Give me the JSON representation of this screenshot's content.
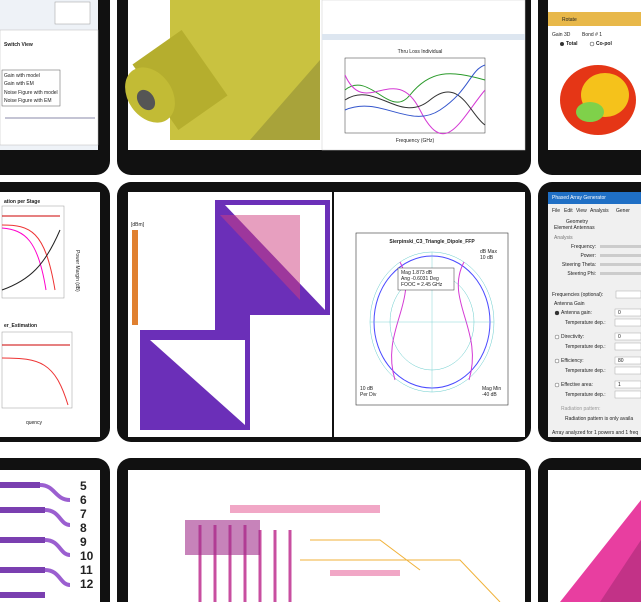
{
  "top_left": {
    "title": "Switch View",
    "items": [
      "Gain with model",
      "Gain with EM",
      "Noise Figure with model",
      "Noise Figure with EM"
    ]
  },
  "top_middle": {
    "plot_title": "Thru Loss Individual",
    "x_label": "Frequency (GHz)"
  },
  "top_right": {
    "button": "Rotate",
    "dropdowns": [
      "Gain 3D",
      "Bond # 1"
    ],
    "radios": [
      "Total",
      "Co-pol"
    ]
  },
  "middle_left": {
    "plot1_title": "ation per Stage",
    "plot1_axis": "Power Margin (dB)",
    "plot2_title": "er_Estimation",
    "x_label": "quency"
  },
  "middle_middle": {
    "legend_unit": "[dBm]",
    "polar_title": "Sierpinski_C3_Triangle_Dipole_FFP",
    "marker": [
      "Mag 1.873 dB",
      "Ang -0.6031 Deg",
      "FOOC = 2.45 GHz"
    ],
    "top_right_labels": [
      "dB Max",
      "10 dB"
    ],
    "bottom_left_labels": [
      "10 dB",
      "Per Div"
    ],
    "bottom_right_labels": [
      "Mag Min",
      "-40 dB"
    ]
  },
  "middle_right": {
    "window_title": "Phased Array Generator",
    "menu": [
      "File",
      "Edit",
      "View",
      "Analysis",
      "Gener"
    ],
    "tabs": [
      "Geometry",
      "Element Antennas"
    ],
    "section": "Analysis",
    "sliders": [
      "Frequency:",
      "Power:",
      "Steering Theta:",
      "Steering Phi:"
    ],
    "frequencies": "Frequencies (optional):",
    "gain_group": "Antenna Gain",
    "fields": [
      {
        "label": "Antenna gain:",
        "value": "0"
      },
      {
        "label": "Temperature dep.:",
        "value": ""
      },
      {
        "label": "Directivity:",
        "value": "0"
      },
      {
        "label": "Temperature dep.:",
        "value": ""
      },
      {
        "label": "Efficiency:",
        "value": "80"
      },
      {
        "label": "Temperature dep.:",
        "value": ""
      },
      {
        "label": "Effective area:",
        "value": "1"
      },
      {
        "label": "Temperature dep.:",
        "value": ""
      }
    ],
    "radiation": "Radiation pattern:",
    "radiation_note": "Radiation pattern is only availa",
    "status": "Array analyzed for 1 powers and 1 freq"
  },
  "bottom_left": {
    "port_labels": [
      "5",
      "6",
      "7",
      "8",
      "9",
      "10",
      "11",
      "12"
    ]
  }
}
